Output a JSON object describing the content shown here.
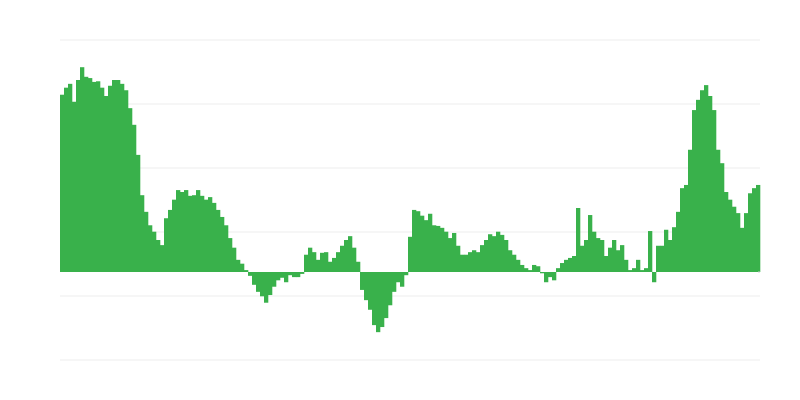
{
  "chart_data": {
    "type": "bar",
    "title": "",
    "xlabel": "",
    "ylabel": "",
    "ylim": [
      -1.375,
      3.625
    ],
    "gridlines": [
      -1.375,
      -0.375,
      0.625,
      1.625,
      2.625,
      3.625
    ],
    "grid": true,
    "legend": "none",
    "colors": {
      "bar": "#39b14b",
      "grid": "#eeeeee",
      "baseline": "#cccccc",
      "background": "#ffffff"
    },
    "values": [
      2.77,
      2.88,
      2.94,
      2.66,
      3.0,
      3.2,
      3.05,
      3.03,
      2.97,
      2.98,
      2.88,
      2.75,
      2.91,
      3.0,
      3.0,
      2.94,
      2.84,
      2.56,
      2.3,
      1.83,
      1.2,
      0.94,
      0.73,
      0.63,
      0.5,
      0.42,
      0.84,
      0.97,
      1.13,
      1.28,
      1.25,
      1.28,
      1.19,
      1.2,
      1.28,
      1.19,
      1.13,
      1.17,
      1.08,
      0.97,
      0.86,
      0.73,
      0.53,
      0.38,
      0.19,
      0.13,
      0.03,
      -0.06,
      -0.2,
      -0.31,
      -0.38,
      -0.48,
      -0.36,
      -0.23,
      -0.13,
      -0.09,
      -0.16,
      -0.05,
      -0.08,
      -0.08,
      -0.03,
      0.27,
      0.38,
      0.31,
      0.19,
      0.3,
      0.31,
      0.16,
      0.22,
      0.31,
      0.41,
      0.5,
      0.56,
      0.38,
      0.16,
      -0.28,
      -0.44,
      -0.59,
      -0.83,
      -0.94,
      -0.86,
      -0.72,
      -0.52,
      -0.31,
      -0.16,
      -0.23,
      -0.05,
      0.55,
      0.97,
      0.95,
      0.88,
      0.81,
      0.91,
      0.73,
      0.72,
      0.69,
      0.63,
      0.53,
      0.61,
      0.41,
      0.27,
      0.27,
      0.31,
      0.34,
      0.31,
      0.42,
      0.5,
      0.59,
      0.56,
      0.63,
      0.58,
      0.5,
      0.34,
      0.27,
      0.19,
      0.11,
      0.06,
      0.03,
      0.11,
      0.09,
      -0.02,
      -0.16,
      -0.08,
      -0.13,
      0.06,
      0.14,
      0.19,
      0.22,
      0.25,
      1.0,
      0.41,
      0.5,
      0.89,
      0.63,
      0.53,
      0.5,
      0.25,
      0.38,
      0.5,
      0.34,
      0.42,
      0.19,
      0.03,
      0.06,
      0.19,
      0.03,
      0.06,
      0.64,
      -0.16,
      0.41,
      0.41,
      0.66,
      0.5,
      0.7,
      0.94,
      1.31,
      1.36,
      1.91,
      2.53,
      2.69,
      2.84,
      2.92,
      2.75,
      2.53,
      1.91,
      1.7,
      1.25,
      1.13,
      1.02,
      0.92,
      0.69,
      0.92,
      1.23,
      1.31,
      1.36
    ]
  }
}
